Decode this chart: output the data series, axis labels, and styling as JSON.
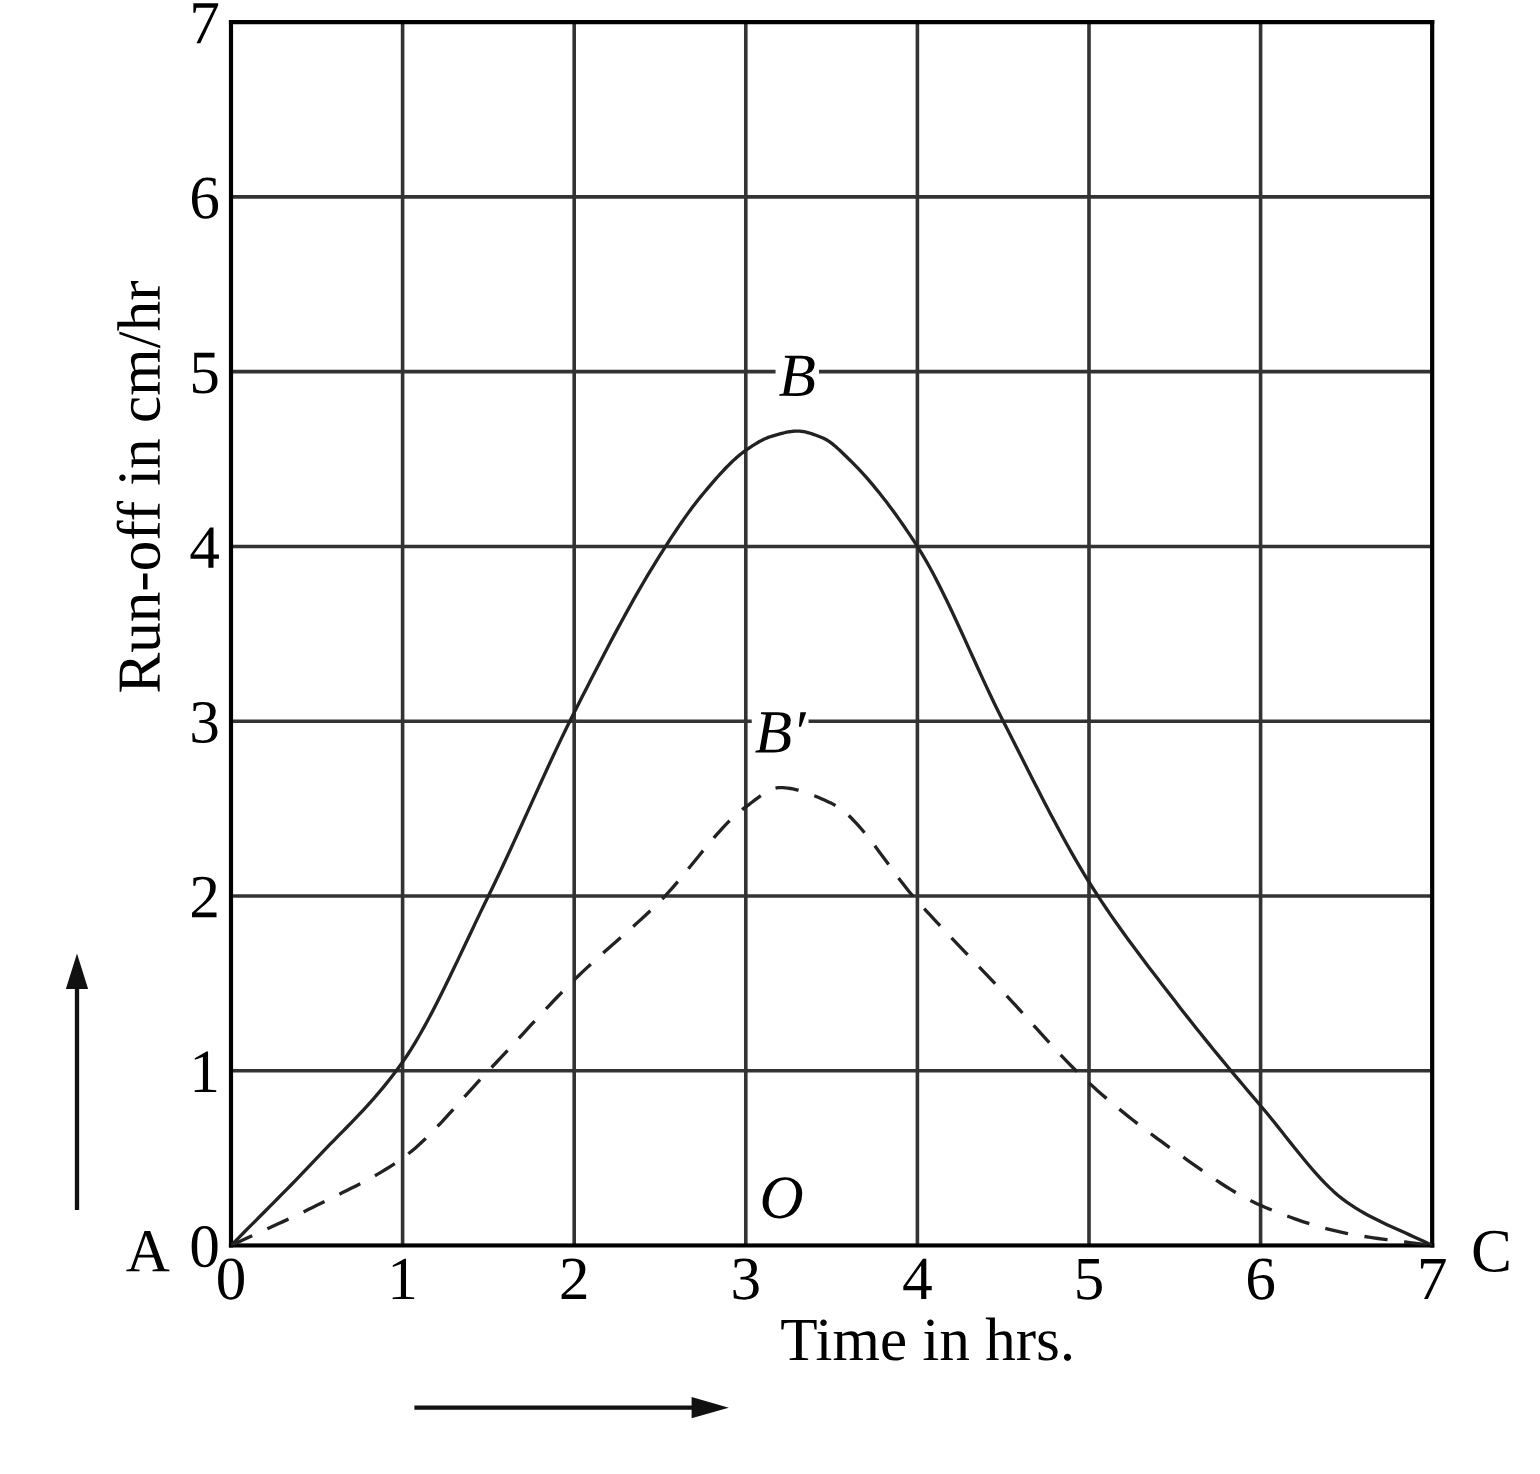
{
  "chart_data": {
    "type": "line",
    "xlabel": "Time in hrs.",
    "ylabel": "Run-off in cm/hr",
    "series": [
      {
        "color": "#222222",
        "line_style": "solid",
        "x": [
          0,
          0.5,
          1,
          1.5,
          2,
          2.5,
          2.75,
          3,
          3.15,
          3.3,
          3.45,
          3.6,
          4,
          4.5,
          5,
          5.5,
          6,
          6.5,
          7
        ],
        "values": [
          0,
          0.5,
          1.05,
          2.0,
          3.05,
          3.95,
          4.3,
          4.55,
          4.63,
          4.66,
          4.62,
          4.5,
          4.0,
          3.0,
          2.08,
          1.4,
          0.8,
          0.25,
          0
        ]
      },
      {
        "color": "#222222",
        "line_style": "dashed",
        "x": [
          0,
          0.5,
          1,
          1.5,
          2,
          2.5,
          3,
          3.2,
          3.5,
          4,
          4.5,
          5,
          5.5,
          6,
          6.5,
          7
        ],
        "values": [
          0,
          0.23,
          0.5,
          1.0,
          1.52,
          1.97,
          2.51,
          2.62,
          2.53,
          1.97,
          1.45,
          0.93,
          0.54,
          0.23,
          0.07,
          0
        ]
      }
    ],
    "annotations": [
      {
        "text": "A",
        "x": 0,
        "y": 0
      },
      "O",
      {
        "text": "C",
        "x": 7,
        "y": 0
      },
      {
        "text": "B",
        "x": 3.3,
        "y": 4.66
      },
      {
        "text": "B′",
        "x": 3.2,
        "y": 2.62
      }
    ],
    "xlim": [
      0,
      7
    ],
    "ylim": [
      0,
      7
    ],
    "xticks": [
      0,
      1,
      2,
      3,
      4,
      5,
      6,
      7
    ],
    "yticks": [
      0,
      1,
      2,
      3,
      4,
      5,
      6,
      7
    ],
    "grid": true,
    "marker": "none"
  }
}
